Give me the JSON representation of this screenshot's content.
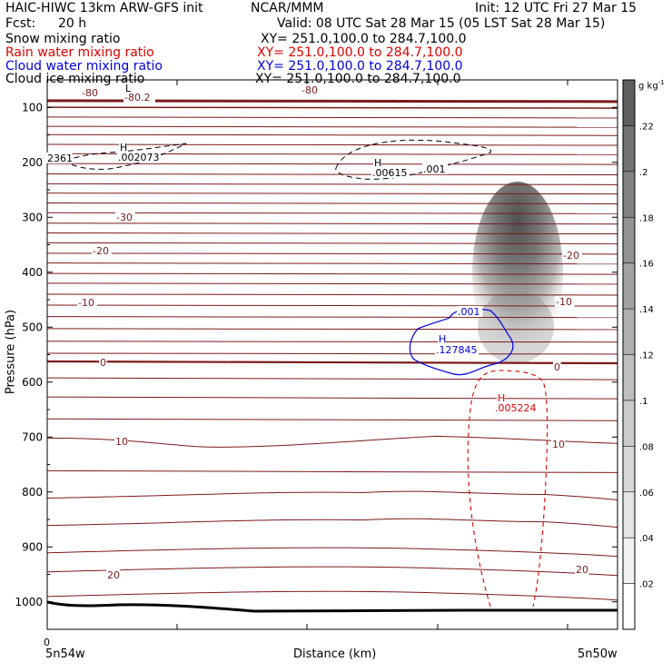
{
  "header": {
    "model": "HAIC-HIWC 13km ARW-GFS init",
    "org": "NCAR/MMM",
    "init": "Init: 12 UTC Fri 27 Mar 15",
    "fcst_label": "Fcst:",
    "fcst_value": "20 h",
    "valid": "Valid: 08 UTC Sat 28 Mar 15 (05 LST Sat 28 Mar 15)"
  },
  "legend": [
    {
      "label": "Snow mixing ratio",
      "xy": "XY= 251.0,100.0 to 284.7,100.0",
      "color": "#000000"
    },
    {
      "label": "Rain water mixing ratio",
      "xy": "XY= 251.0,100.0 to 284.7,100.0",
      "color": "#e00000"
    },
    {
      "label": "Cloud water mixing ratio",
      "xy": "XY= 251.0,100.0 to 284.7,100.0",
      "color": "#0000e0"
    },
    {
      "label": "Cloud ice mixing ratio",
      "xy": "XY= 251.0,100.0 to 284.7,100.0",
      "color": "#000000"
    }
  ],
  "chart_data": {
    "type": "cross-section",
    "ylabel": "Pressure (hPa)",
    "xlabel": "Distance (km)",
    "x_tick_labels": [
      "0"
    ],
    "x_start_label": "5n54w",
    "x_end_label": "5n50w",
    "x_range": [
      0,
      100
    ],
    "y_range": [
      50,
      1050
    ],
    "y_ticks": [
      100,
      200,
      300,
      400,
      500,
      600,
      700,
      800,
      900,
      1000
    ],
    "colorbar": {
      "unit": "g kg",
      "unit_exp": "-1",
      "ticks": [
        ".02",
        ".04",
        ".06",
        ".08",
        ".1",
        ".12",
        ".14",
        ".16",
        ".18",
        ".2",
        ".22"
      ],
      "range": [
        0,
        0.24
      ],
      "colors": [
        "#ffffff",
        "#f2f2f2",
        "#e5e5e5",
        "#d8d8d8",
        "#cbcbcb",
        "#bebebe",
        "#b0b0b0",
        "#a2a2a2",
        "#939393",
        "#838383",
        "#727272",
        "#5e5e5e"
      ]
    },
    "temperature_contours": [
      {
        "label": "-80",
        "color": "#7a1a1a"
      },
      {
        "label": "-80.2",
        "color": "#7a1a1a"
      },
      {
        "label": "-30",
        "color": "#7a1a1a"
      },
      {
        "label": "-20",
        "color": "#7a1a1a"
      },
      {
        "label": "-10",
        "color": "#7a1a1a"
      },
      {
        "label": "0",
        "color": "#7a1a1a"
      },
      {
        "label": "10",
        "color": "#7a1a1a"
      },
      {
        "label": "20",
        "color": "#7a1a1a"
      }
    ],
    "annotations": [
      {
        "text": "H",
        "value": ".002073",
        "color": "#000000"
      },
      {
        "text": "2361",
        "color": "#000000"
      },
      {
        "text": "H",
        "value": ".00615",
        "color": "#000000"
      },
      {
        "text": ".001",
        "color": "#000000"
      },
      {
        "text": "H",
        "value": ".127845",
        "color": "#0000e0"
      },
      {
        "text": ".001",
        "color": "#0000e0"
      },
      {
        "text": "H",
        "value": ".005224",
        "color": "#e00000"
      },
      {
        "text": "L",
        "color": "#000000"
      }
    ],
    "snow_max_gkg": 0.22
  }
}
